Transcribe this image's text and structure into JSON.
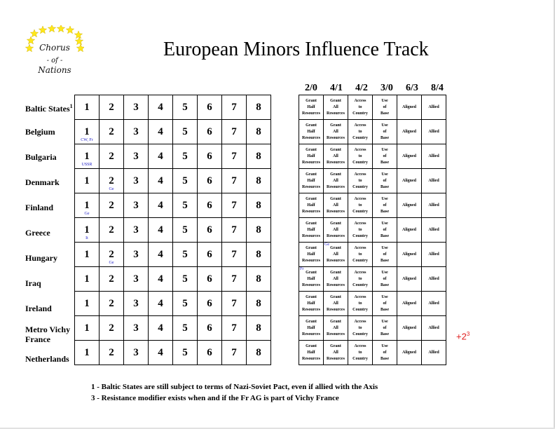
{
  "logo": {
    "line1": "Chorus",
    "line2": "- of -",
    "line3": "Nations"
  },
  "title": "European Minors Influence Track",
  "nations": [
    {
      "name": "Baltic States",
      "note": "1"
    },
    {
      "name": "Belgium",
      "note": ""
    },
    {
      "name": "Bulgaria",
      "note": ""
    },
    {
      "name": "Denmark",
      "note": ""
    },
    {
      "name": "Finland",
      "note": ""
    },
    {
      "name": "Greece",
      "note": ""
    },
    {
      "name": "Hungary",
      "note": ""
    },
    {
      "name": "Iraq",
      "note": ""
    },
    {
      "name": "Ireland",
      "note": ""
    },
    {
      "name": "Metro Vichy France",
      "note": ""
    },
    {
      "name": "Netherlands",
      "note": ""
    }
  ],
  "track": {
    "steps": [
      "1",
      "2",
      "3",
      "4",
      "5",
      "6",
      "7",
      "8"
    ],
    "markers": [
      {
        "row": 1,
        "col": 0,
        "label": "CW, Fr"
      },
      {
        "row": 2,
        "col": 0,
        "label": "USSR"
      },
      {
        "row": 3,
        "col": 1,
        "label": "Ge"
      },
      {
        "row": 4,
        "col": 0,
        "label": "Ge"
      },
      {
        "row": 5,
        "col": 0,
        "label": "It"
      },
      {
        "row": 6,
        "col": 1,
        "label": "Ge"
      }
    ]
  },
  "influence": {
    "headers": [
      "2/0",
      "4/1",
      "4/2",
      "3/0",
      "6/3",
      "8/4"
    ],
    "cells": [
      [
        "Grant",
        "Half",
        "Resources"
      ],
      [
        "Grant",
        "All",
        "Resources"
      ],
      [
        "Access",
        "to",
        "Country"
      ],
      [
        "Use",
        "of",
        "Base"
      ],
      [
        "Aligned"
      ],
      [
        "Allied"
      ]
    ],
    "markers": [
      {
        "row": 6,
        "col": 1,
        "label": "Ge"
      },
      {
        "row": 7,
        "col": 0,
        "label": "Fr"
      }
    ]
  },
  "metro_modifier": {
    "value": "+2",
    "note": "3"
  },
  "footnotes": [
    "1 - Baltic States are still subject to terms of Nazi-Soviet Pact, even if allied with the Axis",
    "3 - Resistance modifier exists when and if the Fr AG is part of Vichy France"
  ],
  "colors": {
    "marker": "#2020c8",
    "modifier": "#e02020",
    "star": "#ffe81a"
  }
}
